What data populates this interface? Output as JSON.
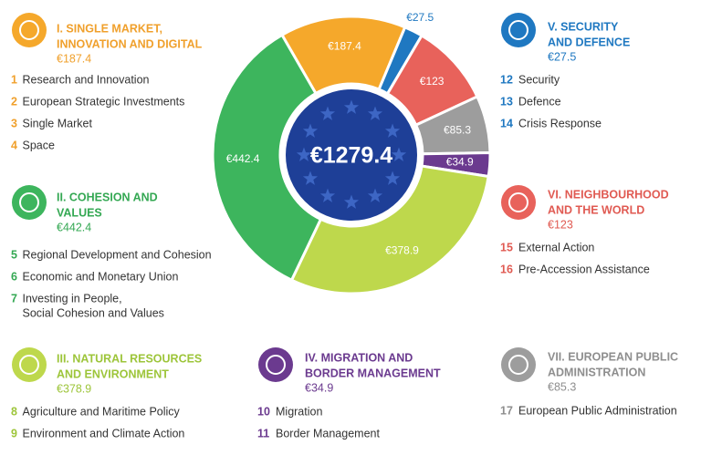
{
  "chart_data": {
    "type": "donut",
    "total": 1279.4,
    "total_label": "€1279.4",
    "values": [
      187.4,
      27.5,
      123,
      85.3,
      34.9,
      378.9,
      442.4
    ],
    "value_labels": [
      "€187.4",
      "€27.5",
      "€123",
      "€85.3",
      "€34.9",
      "€378.9",
      "€442.4"
    ],
    "colors": [
      "#f5a82b",
      "#1f78c1",
      "#e8625b",
      "#9d9d9d",
      "#6b3a8f",
      "#bed84c",
      "#3db55d"
    ],
    "sections": [
      {
        "title": [
          "I. SINGLE MARKET,",
          "INNOVATION AND DIGITAL"
        ],
        "items": [
          {
            "number": 1,
            "text": [
              "Research and Innovation"
            ]
          },
          {
            "number": 2,
            "text": [
              "European Strategic Investments"
            ]
          },
          {
            "number": 3,
            "text": [
              "Single Market"
            ]
          },
          {
            "number": 4,
            "text": [
              "Space"
            ]
          }
        ]
      },
      {
        "title": [
          "V. SECURITY",
          "AND DEFENCE"
        ],
        "items": [
          {
            "number": 12,
            "text": [
              "Security"
            ]
          },
          {
            "number": 13,
            "text": [
              "Defence"
            ]
          },
          {
            "number": 14,
            "text": [
              "Crisis Response"
            ]
          }
        ]
      },
      {
        "title": [
          "VI. NEIGHBOURHOOD",
          "AND THE WORLD"
        ],
        "items": [
          {
            "number": 15,
            "text": [
              "External Action"
            ]
          },
          {
            "number": 16,
            "text": [
              "Pre-Accession Assistance"
            ]
          }
        ]
      },
      {
        "title": [
          "VII. EUROPEAN PUBLIC",
          "ADMINISTRATION"
        ],
        "items": [
          {
            "number": 17,
            "text": [
              "European Public Administration"
            ]
          }
        ]
      },
      {
        "title": [
          "IV. MIGRATION AND",
          "BORDER MANAGEMENT"
        ],
        "items": [
          {
            "number": 10,
            "text": [
              "Migration"
            ]
          },
          {
            "number": 11,
            "text": [
              "Border Management"
            ]
          }
        ]
      },
      {
        "title": [
          "III. NATURAL RESOURCES",
          "AND ENVIRONMENT"
        ],
        "items": [
          {
            "number": 8,
            "text": [
              "Agriculture and Maritime Policy"
            ]
          },
          {
            "number": 9,
            "text": [
              "Environment and Climate Action"
            ]
          }
        ]
      },
      {
        "title": [
          "II. COHESION AND",
          "VALUES"
        ],
        "items": [
          {
            "number": 5,
            "text": [
              "Regional Development and Cohesion"
            ]
          },
          {
            "number": 6,
            "text": [
              "Economic and Monetary Union"
            ]
          },
          {
            "number": 7,
            "text": [
              "Investing in People,",
              "Social Cohesion and Values"
            ]
          }
        ]
      }
    ]
  }
}
